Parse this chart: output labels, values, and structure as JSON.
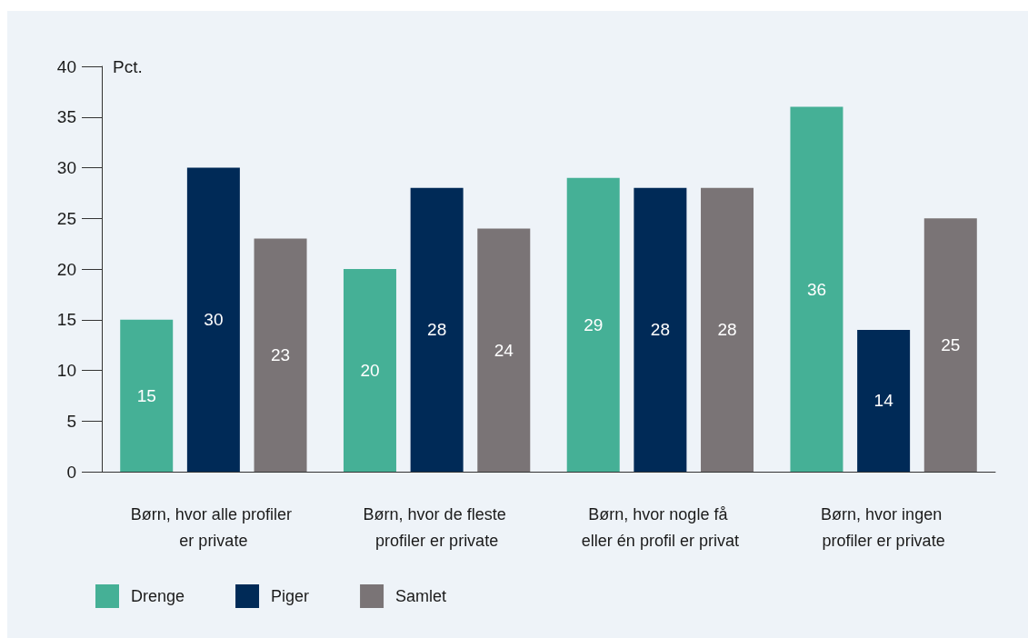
{
  "chart_data": {
    "type": "bar",
    "ylabel": "Pct.",
    "categories": [
      "Børn, hvor alle profiler er private",
      "Børn, hvor de fleste profiler er private",
      "Børn, hvor nogle få eller én profil er privat",
      "Børn, hvor ingen profiler er private"
    ],
    "series": [
      {
        "name": "Drenge",
        "color": "#45b096",
        "values": [
          15,
          20,
          29,
          36
        ]
      },
      {
        "name": "Piger",
        "color": "#002a57",
        "values": [
          30,
          28,
          28,
          14
        ]
      },
      {
        "name": "Samlet",
        "color": "#7a7476",
        "values": [
          23,
          24,
          28,
          25
        ]
      }
    ],
    "ylim": [
      0,
      40
    ],
    "yticks": [
      0,
      5,
      10,
      15,
      20,
      25,
      30,
      35,
      40
    ],
    "grid": false,
    "legend": "bottom left",
    "data_labels": true
  }
}
